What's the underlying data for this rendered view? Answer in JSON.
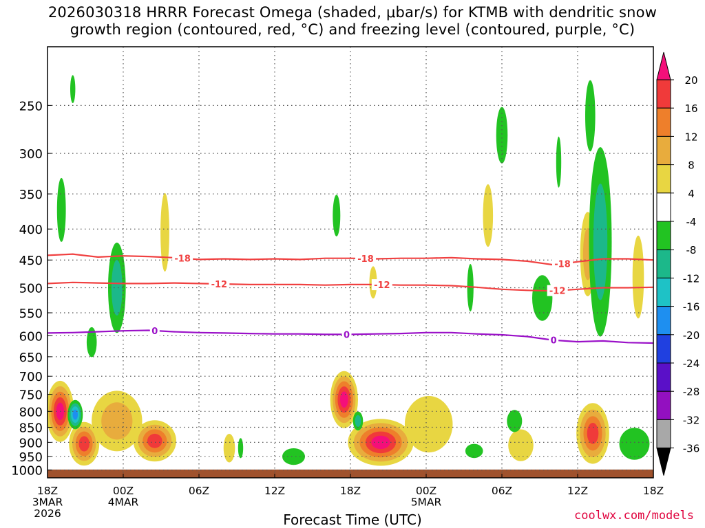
{
  "title": {
    "line1": "2026030318 HRRR Forecast Omega (shaded, μbar/s) for KTMB with dendritic snow",
    "line2": "growth region (contoured, red, °C) and freezing level (contoured, purple, °C)"
  },
  "credit": "coolwx.com/models",
  "chart_data": {
    "type": "heatmap",
    "title": "2026030318 HRRR Forecast Omega (shaded, μbar/s) for KTMB with dendritic snow growth region (contoured, red, °C) and freezing level (contoured, purple, °C)",
    "xlabel": "Forecast Time (UTC)",
    "ylabel": "",
    "x_unit": "forecast hour",
    "xlim": [
      0,
      48
    ],
    "x_ticks": [
      {
        "hour": 0,
        "lines": [
          "18Z",
          "3MAR",
          "2026"
        ]
      },
      {
        "hour": 6,
        "lines": [
          "00Z",
          "4MAR"
        ]
      },
      {
        "hour": 12,
        "lines": [
          "06Z"
        ]
      },
      {
        "hour": 18,
        "lines": [
          "12Z"
        ]
      },
      {
        "hour": 24,
        "lines": [
          "18Z"
        ]
      },
      {
        "hour": 30,
        "lines": [
          "00Z",
          "5MAR"
        ]
      },
      {
        "hour": 36,
        "lines": [
          "06Z"
        ]
      },
      {
        "hour": 42,
        "lines": [
          "12Z"
        ]
      },
      {
        "hour": 48,
        "lines": [
          "18Z"
        ]
      }
    ],
    "y_unit": "hPa",
    "y_scale": "log",
    "ylim": [
      1030,
      200
    ],
    "y_ticks": [
      250,
      300,
      350,
      400,
      450,
      500,
      550,
      600,
      650,
      700,
      750,
      800,
      850,
      900,
      950,
      1000
    ],
    "grid": true,
    "colorbar": {
      "labels": [
        20,
        16,
        12,
        8,
        4,
        -4,
        -8,
        -12,
        -16,
        -20,
        -24,
        -28,
        -32,
        -36
      ],
      "colors": [
        "#f40f7a",
        "#f03a3a",
        "#ee7f2b",
        "#e8ac3d",
        "#e8d642",
        "#ffffff",
        "#22c322",
        "#1cb88a",
        "#1ec2c6",
        "#1e8ff0",
        "#2040e0",
        "#5a10c8",
        "#9310c0",
        "#a8a8a8",
        "#000000"
      ]
    },
    "ground_color": "#a0522d",
    "contours": [
      {
        "name": "dendritic snow growth -18°C",
        "color": "#f04040",
        "labels": [
          {
            "text": "-18",
            "hour": 10.7
          },
          {
            "text": "-18",
            "hour": 25.2
          },
          {
            "text": "-18",
            "hour": 40.8
          }
        ],
        "points": [
          [
            0,
            442
          ],
          [
            2,
            440
          ],
          [
            4,
            445
          ],
          [
            6,
            443
          ],
          [
            8,
            444
          ],
          [
            10,
            446
          ],
          [
            12,
            449
          ],
          [
            14,
            448
          ],
          [
            16,
            449
          ],
          [
            18,
            448
          ],
          [
            20,
            449
          ],
          [
            22,
            447
          ],
          [
            24,
            447
          ],
          [
            26,
            448
          ],
          [
            28,
            447
          ],
          [
            30,
            447
          ],
          [
            32,
            446
          ],
          [
            34,
            448
          ],
          [
            36,
            449
          ],
          [
            38,
            452
          ],
          [
            40,
            458
          ],
          [
            42,
            453
          ],
          [
            44,
            448
          ],
          [
            46,
            448
          ],
          [
            48,
            450
          ]
        ]
      },
      {
        "name": "dendritic snow growth -12°C",
        "color": "#f04040",
        "labels": [
          {
            "text": "-12",
            "hour": 13.6
          },
          {
            "text": "-12",
            "hour": 26.5
          },
          {
            "text": "-12",
            "hour": 40.4
          }
        ],
        "points": [
          [
            0,
            492
          ],
          [
            2,
            490
          ],
          [
            4,
            491
          ],
          [
            6,
            492
          ],
          [
            8,
            492
          ],
          [
            10,
            491
          ],
          [
            12,
            492
          ],
          [
            14,
            493
          ],
          [
            16,
            494
          ],
          [
            18,
            494
          ],
          [
            20,
            494
          ],
          [
            22,
            495
          ],
          [
            24,
            494
          ],
          [
            26,
            494
          ],
          [
            28,
            495
          ],
          [
            30,
            495
          ],
          [
            32,
            496
          ],
          [
            34,
            499
          ],
          [
            36,
            503
          ],
          [
            38,
            505
          ],
          [
            40,
            506
          ],
          [
            42,
            503
          ],
          [
            44,
            500
          ],
          [
            46,
            500
          ],
          [
            48,
            499
          ]
        ]
      },
      {
        "name": "freezing level 0°C",
        "color": "#9a10c8",
        "labels": [
          {
            "text": "0",
            "hour": 8.5
          },
          {
            "text": "0",
            "hour": 23.7
          },
          {
            "text": "0",
            "hour": 40.1
          }
        ],
        "points": [
          [
            0,
            594
          ],
          [
            2,
            593
          ],
          [
            4,
            591
          ],
          [
            6,
            589
          ],
          [
            8,
            588
          ],
          [
            10,
            591
          ],
          [
            12,
            593
          ],
          [
            14,
            594
          ],
          [
            16,
            595
          ],
          [
            18,
            596
          ],
          [
            20,
            596
          ],
          [
            22,
            597
          ],
          [
            24,
            597
          ],
          [
            26,
            596
          ],
          [
            28,
            595
          ],
          [
            30,
            593
          ],
          [
            32,
            593
          ],
          [
            34,
            596
          ],
          [
            36,
            598
          ],
          [
            38,
            602
          ],
          [
            40,
            610
          ],
          [
            42,
            614
          ],
          [
            44,
            612
          ],
          [
            46,
            616
          ],
          [
            48,
            617
          ]
        ]
      }
    ],
    "omega_regions": [
      {
        "hour": 1.0,
        "p": 800,
        "dh": 1.1,
        "dp": 185,
        "levels": [
          4,
          8,
          12,
          16,
          20
        ]
      },
      {
        "hour": 2.9,
        "p": 905,
        "dh": 1.2,
        "dp": 150,
        "levels": [
          4,
          8,
          12,
          16
        ]
      },
      {
        "hour": 5.5,
        "p": 830,
        "dh": 2.0,
        "dp": 190,
        "levels": [
          4,
          8
        ]
      },
      {
        "hour": 8.5,
        "p": 895,
        "dh": 1.7,
        "dp": 140,
        "levels": [
          4,
          8,
          12,
          16
        ]
      },
      {
        "hour": 14.4,
        "p": 920,
        "dh": 0.45,
        "dp": 100,
        "levels": [
          4
        ]
      },
      {
        "hour": 23.5,
        "p": 765,
        "dh": 1.1,
        "dp": 165,
        "levels": [
          4,
          8,
          12,
          16,
          20
        ]
      },
      {
        "hour": 26.4,
        "p": 900,
        "dh": 2.6,
        "dp": 160,
        "levels": [
          4,
          8,
          12,
          16,
          20
        ]
      },
      {
        "hour": 30.2,
        "p": 840,
        "dh": 1.9,
        "dp": 180,
        "levels": [
          4
        ]
      },
      {
        "hour": 37.5,
        "p": 910,
        "dh": 1.0,
        "dp": 110,
        "levels": [
          4
        ]
      },
      {
        "hour": 43.2,
        "p": 870,
        "dh": 1.3,
        "dp": 200,
        "levels": [
          4,
          8,
          12,
          16
        ]
      },
      {
        "hour": 42.8,
        "p": 440,
        "dh": 0.6,
        "dp": 140,
        "levels": [
          4,
          8
        ]
      },
      {
        "hour": 9.3,
        "p": 405,
        "dh": 0.35,
        "dp": 120,
        "levels": [
          4
        ]
      },
      {
        "hour": 34.9,
        "p": 380,
        "dh": 0.4,
        "dp": 90,
        "levels": [
          4
        ]
      },
      {
        "hour": 46.8,
        "p": 480,
        "dh": 0.45,
        "dp": 150,
        "levels": [
          4
        ]
      },
      {
        "hour": 25.8,
        "p": 490,
        "dh": 0.3,
        "dp": 60,
        "levels": [
          4
        ]
      }
    ],
    "subsidence_regions": [
      {
        "hour": 1.1,
        "p": 372,
        "dh": 0.35,
        "dp": 90,
        "levels": [
          -4
        ]
      },
      {
        "hour": 5.5,
        "p": 500,
        "dh": 0.7,
        "dp": 170,
        "levels": [
          -4,
          -8
        ]
      },
      {
        "hour": 3.5,
        "p": 615,
        "dh": 0.4,
        "dp": 70,
        "levels": [
          -4
        ]
      },
      {
        "hour": 2.2,
        "p": 810,
        "dh": 0.6,
        "dp": 90,
        "levels": [
          -4,
          -8,
          -12,
          -16
        ]
      },
      {
        "hour": 24.6,
        "p": 830,
        "dh": 0.4,
        "dp": 60,
        "levels": [
          -4,
          -8
        ]
      },
      {
        "hour": 22.9,
        "p": 380,
        "dh": 0.3,
        "dp": 60,
        "levels": [
          -4
        ]
      },
      {
        "hour": 33.5,
        "p": 500,
        "dh": 0.25,
        "dp": 90,
        "levels": [
          -4
        ]
      },
      {
        "hour": 36.0,
        "p": 280,
        "dh": 0.45,
        "dp": 60,
        "levels": [
          -4
        ]
      },
      {
        "hour": 39.2,
        "p": 520,
        "dh": 0.8,
        "dp": 90,
        "levels": [
          -4
        ]
      },
      {
        "hour": 43.8,
        "p": 420,
        "dh": 0.9,
        "dp": 290,
        "levels": [
          -4,
          -8
        ]
      },
      {
        "hour": 43.0,
        "p": 260,
        "dh": 0.4,
        "dp": 70,
        "levels": [
          -4
        ]
      },
      {
        "hour": 40.5,
        "p": 310,
        "dh": 0.2,
        "dp": 60,
        "levels": [
          -4
        ]
      },
      {
        "hour": 37.0,
        "p": 830,
        "dh": 0.6,
        "dp": 70,
        "levels": [
          -4
        ]
      },
      {
        "hour": 46.5,
        "p": 905,
        "dh": 1.2,
        "dp": 110,
        "levels": [
          -4
        ]
      },
      {
        "hour": 19.5,
        "p": 950,
        "dh": 0.9,
        "dp": 60,
        "levels": [
          -4
        ]
      },
      {
        "hour": 33.8,
        "p": 930,
        "dh": 0.7,
        "dp": 50,
        "levels": [
          -4
        ]
      },
      {
        "hour": 15.3,
        "p": 920,
        "dh": 0.2,
        "dp": 70,
        "levels": [
          -4
        ]
      },
      {
        "hour": 2.0,
        "p": 235,
        "dh": 0.2,
        "dp": 25,
        "levels": [
          -4
        ]
      }
    ]
  }
}
